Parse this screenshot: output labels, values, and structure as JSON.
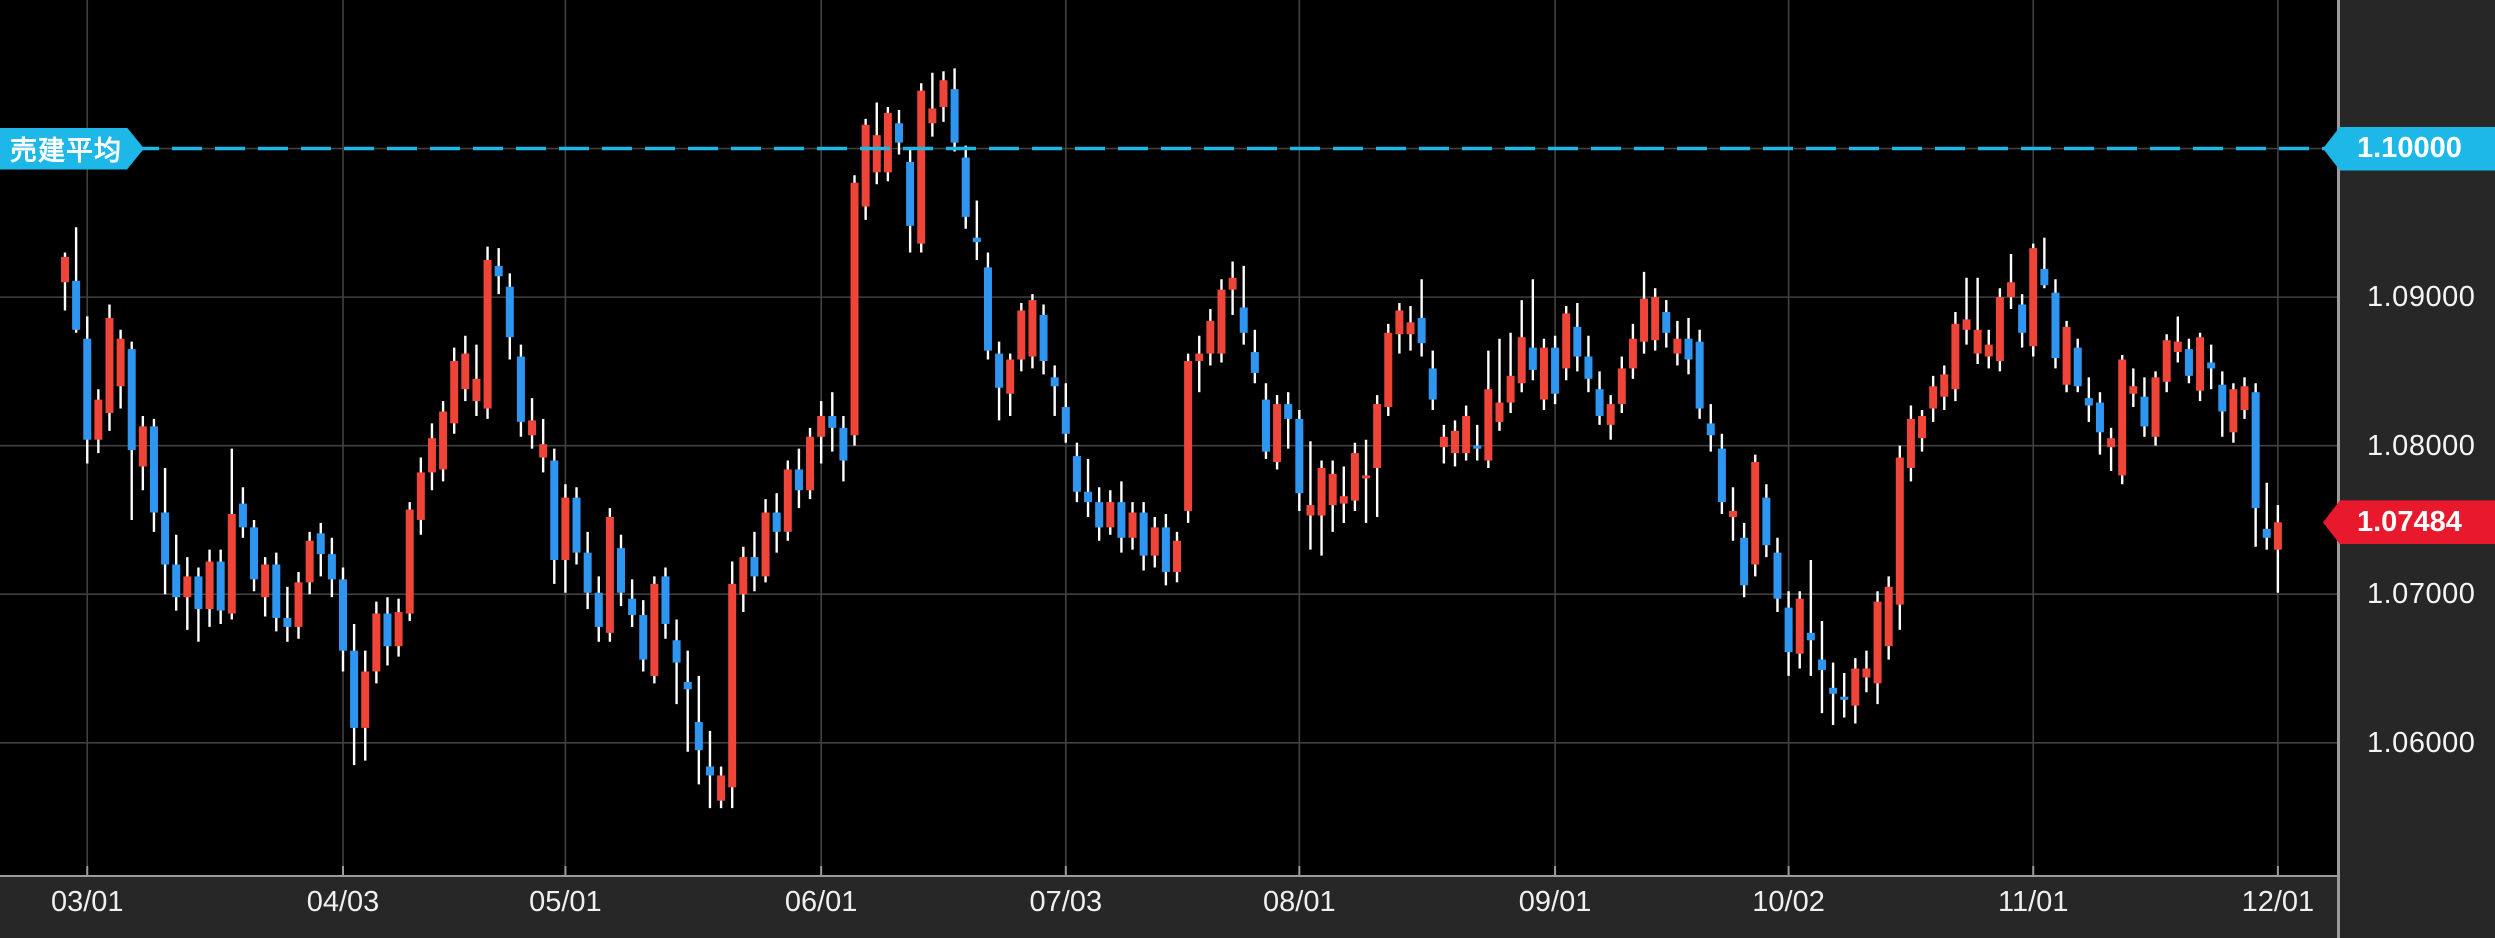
{
  "chart_data": {
    "type": "candlestick",
    "title": "",
    "xlabel": "",
    "ylabel": "",
    "grid": true,
    "background": "#000000",
    "ylim": [
      1.0511,
      1.11
    ],
    "y_axis": {
      "ticks": [
        {
          "label": "1.10000",
          "value": 1.1
        },
        {
          "label": "1.09000",
          "value": 1.09
        },
        {
          "label": "1.08000",
          "value": 1.08
        },
        {
          "label": "1.07000",
          "value": 1.07
        },
        {
          "label": "1.06000",
          "value": 1.06
        }
      ]
    },
    "x_labels": [
      {
        "text": "03/01",
        "candle_index": 2
      },
      {
        "text": "04/03",
        "candle_index": 25
      },
      {
        "text": "05/01",
        "candle_index": 45
      },
      {
        "text": "06/01",
        "candle_index": 68
      },
      {
        "text": "07/03",
        "candle_index": 90
      },
      {
        "text": "08/01",
        "candle_index": 111
      },
      {
        "text": "09/01",
        "candle_index": 134
      },
      {
        "text": "10/02",
        "candle_index": 155
      },
      {
        "text": "11/01",
        "candle_index": 177
      },
      {
        "text": "12/01",
        "candle_index": 199
      }
    ],
    "overlay_line": {
      "label": "売建平均",
      "price_label": "1.10000",
      "value": 1.1,
      "style": "dashed",
      "color": "#1db8e8"
    },
    "last_price": {
      "label": "1.07484",
      "value": 1.07484,
      "color": "#e8182d"
    },
    "colors": {
      "up": "#ef4438",
      "down": "#2e96f0",
      "wick": "#ffffff",
      "grid": "#414141",
      "panel": "#272727",
      "axis_line": "#9b9b9b",
      "text": "#f5f5f5"
    },
    "candles": [
      [
        1.091,
        1.093,
        1.0891,
        1.0927
      ],
      [
        1.0911,
        1.0947,
        1.0876,
        1.0878
      ],
      [
        1.0872,
        1.0887,
        1.0788,
        1.0804
      ],
      [
        1.0804,
        1.0838,
        1.0795,
        1.0831
      ],
      [
        1.0822,
        1.0895,
        1.081,
        1.0886
      ],
      [
        1.084,
        1.0878,
        1.0825,
        1.0872
      ],
      [
        1.0865,
        1.087,
        1.075,
        1.0797
      ],
      [
        1.0786,
        1.082,
        1.077,
        1.0813
      ],
      [
        1.0813,
        1.0818,
        1.0742,
        1.0755
      ],
      [
        1.0755,
        1.0785,
        1.07,
        1.072
      ],
      [
        1.072,
        1.074,
        1.0689,
        1.0698
      ],
      [
        1.0698,
        1.0725,
        1.0676,
        1.0712
      ],
      [
        1.0712,
        1.0718,
        1.0668,
        1.069
      ],
      [
        1.069,
        1.073,
        1.0678,
        1.0722
      ],
      [
        1.0722,
        1.073,
        1.068,
        1.0689
      ],
      [
        1.0687,
        1.0798,
        1.0683,
        1.0754
      ],
      [
        1.0761,
        1.0772,
        1.0738,
        1.0745
      ],
      [
        1.0745,
        1.075,
        1.0702,
        1.071
      ],
      [
        1.0698,
        1.0725,
        1.0685,
        1.072
      ],
      [
        1.072,
        1.0728,
        1.0675,
        1.0684
      ],
      [
        1.0684,
        1.0705,
        1.0668,
        1.0678
      ],
      [
        1.0678,
        1.0715,
        1.067,
        1.0708
      ],
      [
        1.0708,
        1.0742,
        1.07,
        1.0736
      ],
      [
        1.0741,
        1.0748,
        1.0712,
        1.0727
      ],
      [
        1.0727,
        1.0738,
        1.0698,
        1.071
      ],
      [
        1.071,
        1.0718,
        1.0648,
        1.0662
      ],
      [
        1.0662,
        1.068,
        1.0585,
        1.061
      ],
      [
        1.061,
        1.0662,
        1.0588,
        1.0648
      ],
      [
        1.0648,
        1.0695,
        1.064,
        1.0687
      ],
      [
        1.0687,
        1.0698,
        1.0652,
        1.0665
      ],
      [
        1.0665,
        1.0697,
        1.0658,
        1.0688
      ],
      [
        1.0687,
        1.0762,
        1.0682,
        1.0757
      ],
      [
        1.075,
        1.0792,
        1.074,
        1.0782
      ],
      [
        1.0782,
        1.0815,
        1.077,
        1.0805
      ],
      [
        1.0784,
        1.083,
        1.0776,
        1.0823
      ],
      [
        1.0815,
        1.0866,
        1.0808,
        1.0857
      ],
      [
        1.0838,
        1.0874,
        1.083,
        1.0862
      ],
      [
        1.083,
        1.0868,
        1.082,
        1.0845
      ],
      [
        1.0825,
        1.0934,
        1.0818,
        1.0925
      ],
      [
        1.0921,
        1.0933,
        1.0902,
        1.0914
      ],
      [
        1.0907,
        1.0916,
        1.0858,
        1.0873
      ],
      [
        1.086,
        1.0868,
        1.0806,
        1.0816
      ],
      [
        1.0807,
        1.0832,
        1.0798,
        1.0817
      ],
      [
        1.0792,
        1.0818,
        1.0782,
        1.0801
      ],
      [
        1.079,
        1.0798,
        1.0707,
        1.0723
      ],
      [
        1.0723,
        1.0774,
        1.0701,
        1.0765
      ],
      [
        1.0765,
        1.0772,
        1.072,
        1.0728
      ],
      [
        1.0728,
        1.0742,
        1.069,
        1.0701
      ],
      [
        1.0701,
        1.0712,
        1.0668,
        1.0678
      ],
      [
        1.0674,
        1.0758,
        1.0668,
        1.0752
      ],
      [
        1.0731,
        1.074,
        1.0692,
        1.0701
      ],
      [
        1.0697,
        1.071,
        1.0678,
        1.0686
      ],
      [
        1.0686,
        1.0696,
        1.0648,
        1.0656
      ],
      [
        1.0645,
        1.0712,
        1.064,
        1.0707
      ],
      [
        1.0712,
        1.0718,
        1.067,
        1.068
      ],
      [
        1.0669,
        1.0683,
        1.0626,
        1.0654
      ],
      [
        1.0641,
        1.0662,
        1.0594,
        1.0636
      ],
      [
        1.0614,
        1.0645,
        1.0572,
        1.0595
      ],
      [
        1.0584,
        1.0608,
        1.0556,
        1.0578
      ],
      [
        1.0561,
        1.0584,
        1.0556,
        1.0578
      ],
      [
        1.057,
        1.0722,
        1.0556,
        1.0707
      ],
      [
        1.07,
        1.0732,
        1.0688,
        1.0725
      ],
      [
        1.0725,
        1.0742,
        1.0702,
        1.0712
      ],
      [
        1.0712,
        1.0764,
        1.0708,
        1.0755
      ],
      [
        1.0755,
        1.0768,
        1.0728,
        1.0742
      ],
      [
        1.0742,
        1.079,
        1.0736,
        1.0784
      ],
      [
        1.0784,
        1.0798,
        1.0758,
        1.077
      ],
      [
        1.077,
        1.0812,
        1.0764,
        1.0806
      ],
      [
        1.0806,
        1.083,
        1.0788,
        1.082
      ],
      [
        1.082,
        1.0836,
        1.0796,
        1.0812
      ],
      [
        1.0812,
        1.082,
        1.0776,
        1.079
      ],
      [
        1.0807,
        1.0982,
        1.08,
        1.0977
      ],
      [
        1.0961,
        1.102,
        1.0952,
        1.1016
      ],
      [
        1.0984,
        1.1031,
        1.0976,
        1.1009
      ],
      [
        1.0984,
        1.1028,
        1.0978,
        1.1024
      ],
      [
        1.1017,
        1.1026,
        1.0996,
        1.1004
      ],
      [
        1.0991,
        1.1,
        1.093,
        1.0948
      ],
      [
        1.0936,
        1.1044,
        1.093,
        1.1039
      ],
      [
        1.1017,
        1.1051,
        1.1008,
        1.1027
      ],
      [
        1.1028,
        1.1052,
        1.1018,
        1.1046
      ],
      [
        1.104,
        1.1054,
        1.0998,
        1.1004
      ],
      [
        1.0994,
        1.1002,
        1.0946,
        1.0954
      ],
      [
        1.094,
        1.0965,
        1.0925,
        1.0937
      ],
      [
        1.092,
        1.093,
        1.0858,
        1.0864
      ],
      [
        1.0862,
        1.087,
        1.0817,
        1.0839
      ],
      [
        1.0835,
        1.0862,
        1.082,
        1.0858
      ],
      [
        1.0858,
        1.0896,
        1.085,
        1.0891
      ],
      [
        1.086,
        1.0902,
        1.0852,
        1.0898
      ],
      [
        1.0888,
        1.0895,
        1.0848,
        1.0857
      ],
      [
        1.0846,
        1.0854,
        1.082,
        1.084
      ],
      [
        1.0826,
        1.0842,
        1.0802,
        1.0808
      ],
      [
        1.0793,
        1.0802,
        1.0762,
        1.0769
      ],
      [
        1.0769,
        1.0791,
        1.0752,
        1.0762
      ],
      [
        1.0762,
        1.0772,
        1.0736,
        1.0745
      ],
      [
        1.0745,
        1.077,
        1.074,
        1.0762
      ],
      [
        1.0762,
        1.0776,
        1.0728,
        1.0738
      ],
      [
        1.0738,
        1.0762,
        1.073,
        1.0755
      ],
      [
        1.0755,
        1.0762,
        1.0716,
        1.0726
      ],
      [
        1.0726,
        1.0752,
        1.0718,
        1.0745
      ],
      [
        1.0745,
        1.0754,
        1.0706,
        1.0715
      ],
      [
        1.0715,
        1.0742,
        1.0708,
        1.0736
      ],
      [
        1.0756,
        1.0862,
        1.0748,
        1.0857
      ],
      [
        1.0857,
        1.0874,
        1.0836,
        1.0862
      ],
      [
        1.0862,
        1.0892,
        1.0854,
        1.0884
      ],
      [
        1.0862,
        1.0912,
        1.0856,
        1.0905
      ],
      [
        1.0905,
        1.0924,
        1.0888,
        1.0913
      ],
      [
        1.0893,
        1.0921,
        1.0868,
        1.0876
      ],
      [
        1.0863,
        1.0878,
        1.0842,
        1.0849
      ],
      [
        1.0831,
        1.0842,
        1.0791,
        1.0796
      ],
      [
        1.0789,
        1.0834,
        1.0784,
        1.0828
      ],
      [
        1.0828,
        1.0836,
        1.0798,
        1.0818
      ],
      [
        1.0818,
        1.0824,
        1.0756,
        1.0768
      ],
      [
        1.0753,
        1.0803,
        1.073,
        1.076
      ],
      [
        1.0753,
        1.079,
        1.0726,
        1.0785
      ],
      [
        1.076,
        1.079,
        1.0742,
        1.0781
      ],
      [
        1.0761,
        1.0786,
        1.0748,
        1.0766
      ],
      [
        1.0763,
        1.0802,
        1.0756,
        1.0795
      ],
      [
        1.0778,
        1.0804,
        1.0748,
        1.078
      ],
      [
        1.0785,
        1.0834,
        1.0752,
        1.0828
      ],
      [
        1.0826,
        1.0882,
        1.082,
        1.0876
      ],
      [
        1.0875,
        1.0896,
        1.0862,
        1.0891
      ],
      [
        1.0875,
        1.0894,
        1.0864,
        1.0883
      ],
      [
        1.0886,
        1.0912,
        1.086,
        1.0869
      ],
      [
        1.0852,
        1.0864,
        1.0824,
        1.0831
      ],
      [
        1.0799,
        1.0814,
        1.0788,
        1.0806
      ],
      [
        1.0795,
        1.0817,
        1.0786,
        1.081
      ],
      [
        1.0795,
        1.0827,
        1.079,
        1.082
      ],
      [
        1.08,
        1.0814,
        1.079,
        1.0798
      ],
      [
        1.079,
        1.0864,
        1.0785,
        1.0838
      ],
      [
        1.0816,
        1.0872,
        1.081,
        1.0829
      ],
      [
        1.0829,
        1.0876,
        1.0822,
        1.0847
      ],
      [
        1.0842,
        1.0898,
        1.0836,
        1.0873
      ],
      [
        1.0866,
        1.0912,
        1.0844,
        1.0851
      ],
      [
        1.0831,
        1.0872,
        1.0824,
        1.0866
      ],
      [
        1.0866,
        1.0874,
        1.0828,
        1.0835
      ],
      [
        1.0852,
        1.0894,
        1.0844,
        1.0889
      ],
      [
        1.088,
        1.0896,
        1.085,
        1.086
      ],
      [
        1.086,
        1.0874,
        1.0836,
        1.0845
      ],
      [
        1.0838,
        1.085,
        1.0814,
        1.082
      ],
      [
        1.0814,
        1.0834,
        1.0804,
        1.0828
      ],
      [
        1.0828,
        1.086,
        1.0822,
        1.0852
      ],
      [
        1.0852,
        1.0882,
        1.0845,
        1.0872
      ],
      [
        1.087,
        1.0917,
        1.0862,
        1.0899
      ],
      [
        1.0871,
        1.0906,
        1.0864,
        1.09
      ],
      [
        1.089,
        1.0898,
        1.0866,
        1.0876
      ],
      [
        1.0862,
        1.0884,
        1.0854,
        1.0872
      ],
      [
        1.0872,
        1.0886,
        1.0848,
        1.0858
      ],
      [
        1.087,
        1.0878,
        1.0818,
        1.0825
      ],
      [
        1.0815,
        1.0828,
        1.0796,
        1.0807
      ],
      [
        1.0798,
        1.0808,
        1.0754,
        1.0762
      ],
      [
        1.0752,
        1.0772,
        1.0736,
        1.0756
      ],
      [
        1.0738,
        1.0748,
        1.0698,
        1.0706
      ],
      [
        1.072,
        1.0794,
        1.0712,
        1.0789
      ],
      [
        1.0765,
        1.0774,
        1.0725,
        1.0733
      ],
      [
        1.0728,
        1.0738,
        1.0688,
        1.0697
      ],
      [
        1.0691,
        1.0702,
        1.0645,
        1.0661
      ],
      [
        1.066,
        1.0702,
        1.065,
        1.0697
      ],
      [
        1.0674,
        1.0723,
        1.0645,
        1.0669
      ],
      [
        1.0656,
        1.0682,
        1.062,
        1.0649
      ],
      [
        1.0637,
        1.0654,
        1.0612,
        1.0633
      ],
      [
        1.0631,
        1.0647,
        1.0617,
        1.0629
      ],
      [
        1.0625,
        1.0657,
        1.0613,
        1.065
      ],
      [
        1.0644,
        1.0662,
        1.0634,
        1.065
      ],
      [
        1.064,
        1.0702,
        1.0626,
        1.0695
      ],
      [
        1.0665,
        1.0712,
        1.0656,
        1.0705
      ],
      [
        1.0693,
        1.08,
        1.0676,
        1.0792
      ],
      [
        1.0785,
        1.0827,
        1.0776,
        1.0818
      ],
      [
        1.0805,
        1.0824,
        1.0796,
        1.082
      ],
      [
        1.0825,
        1.0847,
        1.0816,
        1.084
      ],
      [
        1.0833,
        1.0854,
        1.0824,
        1.0848
      ],
      [
        1.0838,
        1.089,
        1.083,
        1.0882
      ],
      [
        1.0878,
        1.0913,
        1.0868,
        1.0885
      ],
      [
        1.0862,
        1.0913,
        1.0855,
        1.0878
      ],
      [
        1.086,
        1.0878,
        1.0852,
        1.0868
      ],
      [
        1.0857,
        1.0906,
        1.085,
        1.09
      ],
      [
        1.09,
        1.0929,
        1.0892,
        1.091
      ],
      [
        1.0895,
        1.0902,
        1.0866,
        1.0876
      ],
      [
        1.0867,
        1.0936,
        1.086,
        1.0933
      ],
      [
        1.0919,
        1.094,
        1.0906,
        1.0908
      ],
      [
        1.0903,
        1.0912,
        1.0852,
        1.0859
      ],
      [
        1.0841,
        1.0884,
        1.0836,
        1.088
      ],
      [
        1.0866,
        1.0872,
        1.0836,
        1.084
      ],
      [
        1.0832,
        1.0846,
        1.0816,
        1.0827
      ],
      [
        1.0829,
        1.0836,
        1.0794,
        1.0809
      ],
      [
        1.0799,
        1.0812,
        1.0783,
        1.0805
      ],
      [
        1.078,
        1.0861,
        1.0774,
        1.0858
      ],
      [
        1.0835,
        1.0852,
        1.0826,
        1.084
      ],
      [
        1.0833,
        1.0846,
        1.0806,
        1.0813
      ],
      [
        1.0806,
        1.085,
        1.08,
        1.0846
      ],
      [
        1.0843,
        1.0875,
        1.0836,
        1.0871
      ],
      [
        1.0863,
        1.0887,
        1.0856,
        1.087
      ],
      [
        1.0865,
        1.0872,
        1.0842,
        1.0847
      ],
      [
        1.0837,
        1.0876,
        1.083,
        1.0873
      ],
      [
        1.0856,
        1.0868,
        1.0838,
        1.0852
      ],
      [
        1.0841,
        1.085,
        1.0806,
        1.0823
      ],
      [
        1.0809,
        1.0842,
        1.0802,
        1.0838
      ],
      [
        1.0824,
        1.0846,
        1.0818,
        1.084
      ],
      [
        1.0836,
        1.0842,
        1.0732,
        1.0758
      ],
      [
        1.0744,
        1.0775,
        1.073,
        1.0738
      ],
      [
        1.073,
        1.076,
        1.0701,
        1.07484
      ]
    ]
  }
}
